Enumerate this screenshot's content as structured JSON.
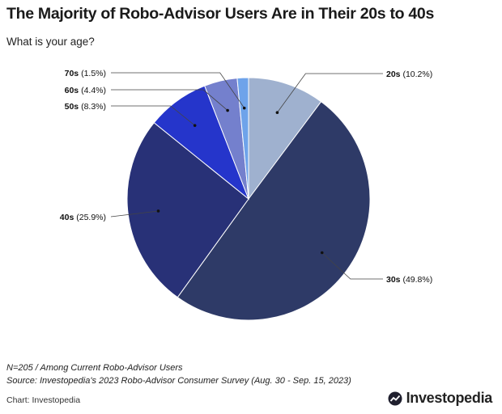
{
  "title": "The Majority of Robo-Advisor Users Are in Their 20s to 40s",
  "subtitle": "What is your age?",
  "footnote": "N=205 / Among Current Robo-Advisor Users",
  "source": "Source: Investopedia's 2023 Robo-Advisor Consumer Survey (Aug. 30 - Sep. 15, 2023)",
  "credit": "Chart: Investopedia",
  "brand": {
    "name": "Investopedia",
    "icon": "investopedia-logo-icon"
  },
  "chart_data": {
    "type": "pie",
    "title": "The Majority of Robo-Advisor Users Are in Their 20s to 40s",
    "slices": [
      {
        "label": "20s",
        "value": 10.2,
        "display": "(10.2%)",
        "color": "#9fb1cf",
        "label_side": "right"
      },
      {
        "label": "30s",
        "value": 49.8,
        "display": "(49.8%)",
        "color": "#2e3a67",
        "label_side": "right"
      },
      {
        "label": "40s",
        "value": 25.9,
        "display": "(25.9%)",
        "color": "#283177",
        "label_side": "left"
      },
      {
        "label": "50s",
        "value": 8.3,
        "display": "(8.3%)",
        "color": "#2535cb",
        "label_side": "left"
      },
      {
        "label": "60s",
        "value": 4.4,
        "display": "(4.4%)",
        "color": "#7480cd",
        "label_side": "left"
      },
      {
        "label": "70s",
        "value": 1.5,
        "display": "(1.5%)",
        "color": "#6ea3ea",
        "label_side": "left"
      }
    ]
  }
}
